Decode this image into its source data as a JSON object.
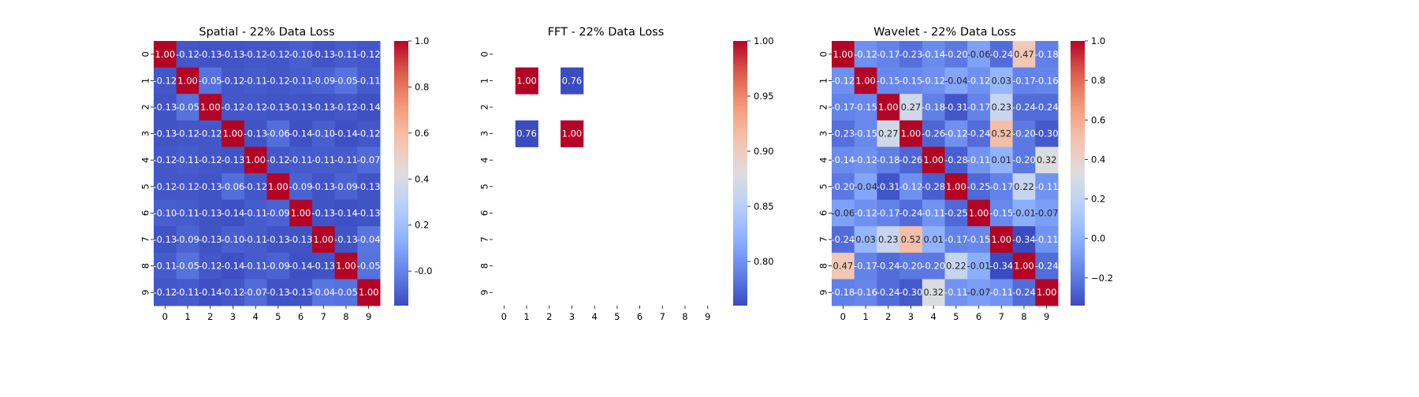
{
  "chart_data": [
    {
      "type": "heatmap",
      "title": "Spatial - 22% Data Loss",
      "x": [
        "0",
        "1",
        "2",
        "3",
        "4",
        "5",
        "6",
        "7",
        "8",
        "9"
      ],
      "y": [
        "0",
        "1",
        "2",
        "3",
        "4",
        "5",
        "6",
        "7",
        "8",
        "9"
      ],
      "values": [
        [
          1.0,
          -0.12,
          -0.13,
          -0.13,
          -0.12,
          -0.12,
          -0.1,
          -0.13,
          -0.11,
          -0.12
        ],
        [
          -0.12,
          1.0,
          -0.05,
          -0.12,
          -0.11,
          -0.12,
          -0.11,
          -0.09,
          -0.05,
          -0.11
        ],
        [
          -0.13,
          -0.05,
          1.0,
          -0.12,
          -0.12,
          -0.13,
          -0.13,
          -0.13,
          -0.12,
          -0.14
        ],
        [
          -0.13,
          -0.12,
          -0.12,
          1.0,
          -0.13,
          -0.06,
          -0.14,
          -0.1,
          -0.14,
          -0.12
        ],
        [
          -0.12,
          -0.11,
          -0.12,
          -0.13,
          1.0,
          -0.12,
          -0.11,
          -0.11,
          -0.11,
          -0.07
        ],
        [
          -0.12,
          -0.12,
          -0.13,
          -0.06,
          -0.12,
          1.0,
          -0.09,
          -0.13,
          -0.09,
          -0.13
        ],
        [
          -0.1,
          -0.11,
          -0.13,
          -0.14,
          -0.11,
          -0.09,
          1.0,
          -0.13,
          -0.14,
          -0.13
        ],
        [
          -0.13,
          -0.09,
          -0.13,
          -0.1,
          -0.11,
          -0.13,
          -0.13,
          1.0,
          -0.13,
          -0.04
        ],
        [
          -0.11,
          -0.05,
          -0.12,
          -0.14,
          -0.11,
          -0.09,
          -0.14,
          -0.13,
          1.0,
          -0.05
        ],
        [
          -0.12,
          -0.11,
          -0.14,
          -0.12,
          -0.07,
          -0.13,
          -0.13,
          -0.04,
          -0.05,
          1.0
        ]
      ],
      "vmin": -0.15,
      "vmax": 1.0,
      "colorbar_ticks": [
        "-0.0",
        "0.2",
        "0.4",
        "0.6",
        "0.8",
        "1.0"
      ],
      "colorbar_tick_values": [
        0.0,
        0.2,
        0.4,
        0.6,
        0.8,
        1.0
      ],
      "colormap": "coolwarm"
    },
    {
      "type": "heatmap",
      "title": "FFT - 22% Data Loss",
      "x": [
        "0",
        "1",
        "2",
        "3",
        "4",
        "5",
        "6",
        "7",
        "8",
        "9"
      ],
      "y": [
        "0",
        "1",
        "2",
        "3",
        "4",
        "5",
        "6",
        "7",
        "8",
        "9"
      ],
      "values": [
        [
          null,
          null,
          null,
          null,
          null,
          null,
          null,
          null,
          null,
          null
        ],
        [
          null,
          1.0,
          null,
          0.76,
          null,
          null,
          null,
          null,
          null,
          null
        ],
        [
          null,
          null,
          null,
          null,
          null,
          null,
          null,
          null,
          null,
          null
        ],
        [
          null,
          0.76,
          null,
          1.0,
          null,
          null,
          null,
          null,
          null,
          null
        ],
        [
          null,
          null,
          null,
          null,
          null,
          null,
          null,
          null,
          null,
          null
        ],
        [
          null,
          null,
          null,
          null,
          null,
          null,
          null,
          null,
          null,
          null
        ],
        [
          null,
          null,
          null,
          null,
          null,
          null,
          null,
          null,
          null,
          null
        ],
        [
          null,
          null,
          null,
          null,
          null,
          null,
          null,
          null,
          null,
          null
        ],
        [
          null,
          null,
          null,
          null,
          null,
          null,
          null,
          null,
          null,
          null
        ],
        [
          null,
          null,
          null,
          null,
          null,
          null,
          null,
          null,
          null,
          null
        ]
      ],
      "vmin": 0.76,
      "vmax": 1.0,
      "colorbar_ticks": [
        "0.80",
        "0.85",
        "0.90",
        "0.95",
        "1.00"
      ],
      "colorbar_tick_values": [
        0.8,
        0.85,
        0.9,
        0.95,
        1.0
      ],
      "colormap": "coolwarm"
    },
    {
      "type": "heatmap",
      "title": "Wavelet - 22% Data Loss",
      "x": [
        "0",
        "1",
        "2",
        "3",
        "4",
        "5",
        "6",
        "7",
        "8",
        "9"
      ],
      "y": [
        "0",
        "1",
        "2",
        "3",
        "4",
        "5",
        "6",
        "7",
        "8",
        "9"
      ],
      "values": [
        [
          1.0,
          -0.12,
          -0.17,
          -0.23,
          -0.14,
          -0.2,
          -0.06,
          -0.24,
          0.47,
          -0.18
        ],
        [
          -0.12,
          1.0,
          -0.15,
          -0.15,
          -0.12,
          -0.04,
          -0.12,
          0.03,
          -0.17,
          -0.16
        ],
        [
          -0.17,
          -0.15,
          1.0,
          0.27,
          -0.18,
          -0.31,
          -0.17,
          0.23,
          -0.24,
          -0.24
        ],
        [
          -0.23,
          -0.15,
          0.27,
          1.0,
          -0.26,
          -0.12,
          -0.24,
          0.52,
          -0.2,
          -0.3
        ],
        [
          -0.14,
          -0.12,
          -0.18,
          -0.26,
          1.0,
          -0.28,
          -0.11,
          0.01,
          -0.2,
          0.32
        ],
        [
          -0.2,
          -0.04,
          -0.31,
          -0.12,
          -0.28,
          1.0,
          -0.25,
          -0.17,
          0.22,
          -0.11
        ],
        [
          -0.06,
          -0.12,
          -0.17,
          -0.24,
          -0.11,
          -0.25,
          1.0,
          -0.15,
          -0.01,
          -0.07
        ],
        [
          -0.24,
          0.03,
          0.23,
          0.52,
          0.01,
          -0.17,
          -0.15,
          1.0,
          -0.34,
          -0.11
        ],
        [
          0.47,
          -0.17,
          -0.24,
          -0.2,
          -0.2,
          0.22,
          -0.01,
          -0.34,
          1.0,
          -0.24
        ],
        [
          -0.18,
          -0.16,
          -0.24,
          -0.3,
          0.32,
          -0.11,
          -0.07,
          -0.11,
          -0.24,
          1.0
        ]
      ],
      "vmin": -0.34,
      "vmax": 1.0,
      "colorbar_ticks": [
        "−0.2",
        "0.0",
        "0.2",
        "0.4",
        "0.6",
        "0.8",
        "1.0"
      ],
      "colorbar_tick_values": [
        -0.2,
        0.0,
        0.2,
        0.4,
        0.6,
        0.8,
        1.0
      ],
      "colormap": "coolwarm"
    }
  ]
}
